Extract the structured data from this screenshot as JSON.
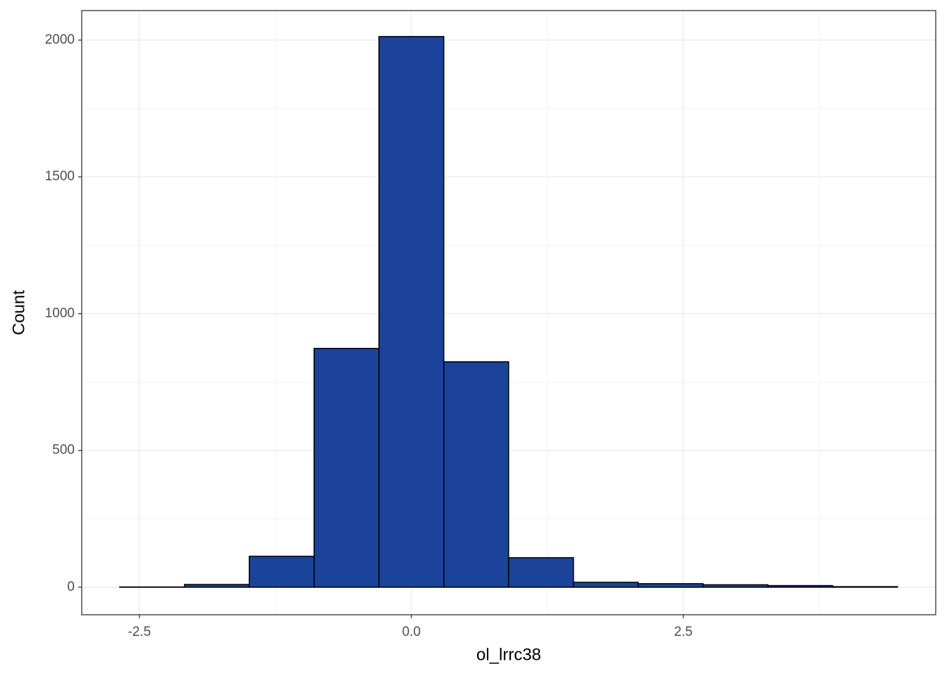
{
  "chart_data": {
    "type": "histogram",
    "x_label": "ol_lrrc38",
    "y_label": "Count",
    "bins": [
      -2.681,
      -2.085,
      -1.49,
      -0.894,
      -0.298,
      0.298,
      0.894,
      1.49,
      2.085,
      2.681,
      3.277,
      3.873,
      4.469
    ],
    "counts": [
      1,
      10,
      113,
      873,
      2013,
      824,
      108,
      18,
      13,
      9,
      6,
      2
    ],
    "color": "#1a4399",
    "edge_color": "#000000",
    "xlim": [
      -3.03,
      4.82
    ],
    "ylim": [
      -100.6,
      2108
    ],
    "xticks": [
      -2.5,
      {
        "value": 0,
        "label": "0.0"
      },
      2.5
    ],
    "yticks": [
      0,
      500,
      1000,
      1500,
      2000
    ],
    "grid": true
  }
}
